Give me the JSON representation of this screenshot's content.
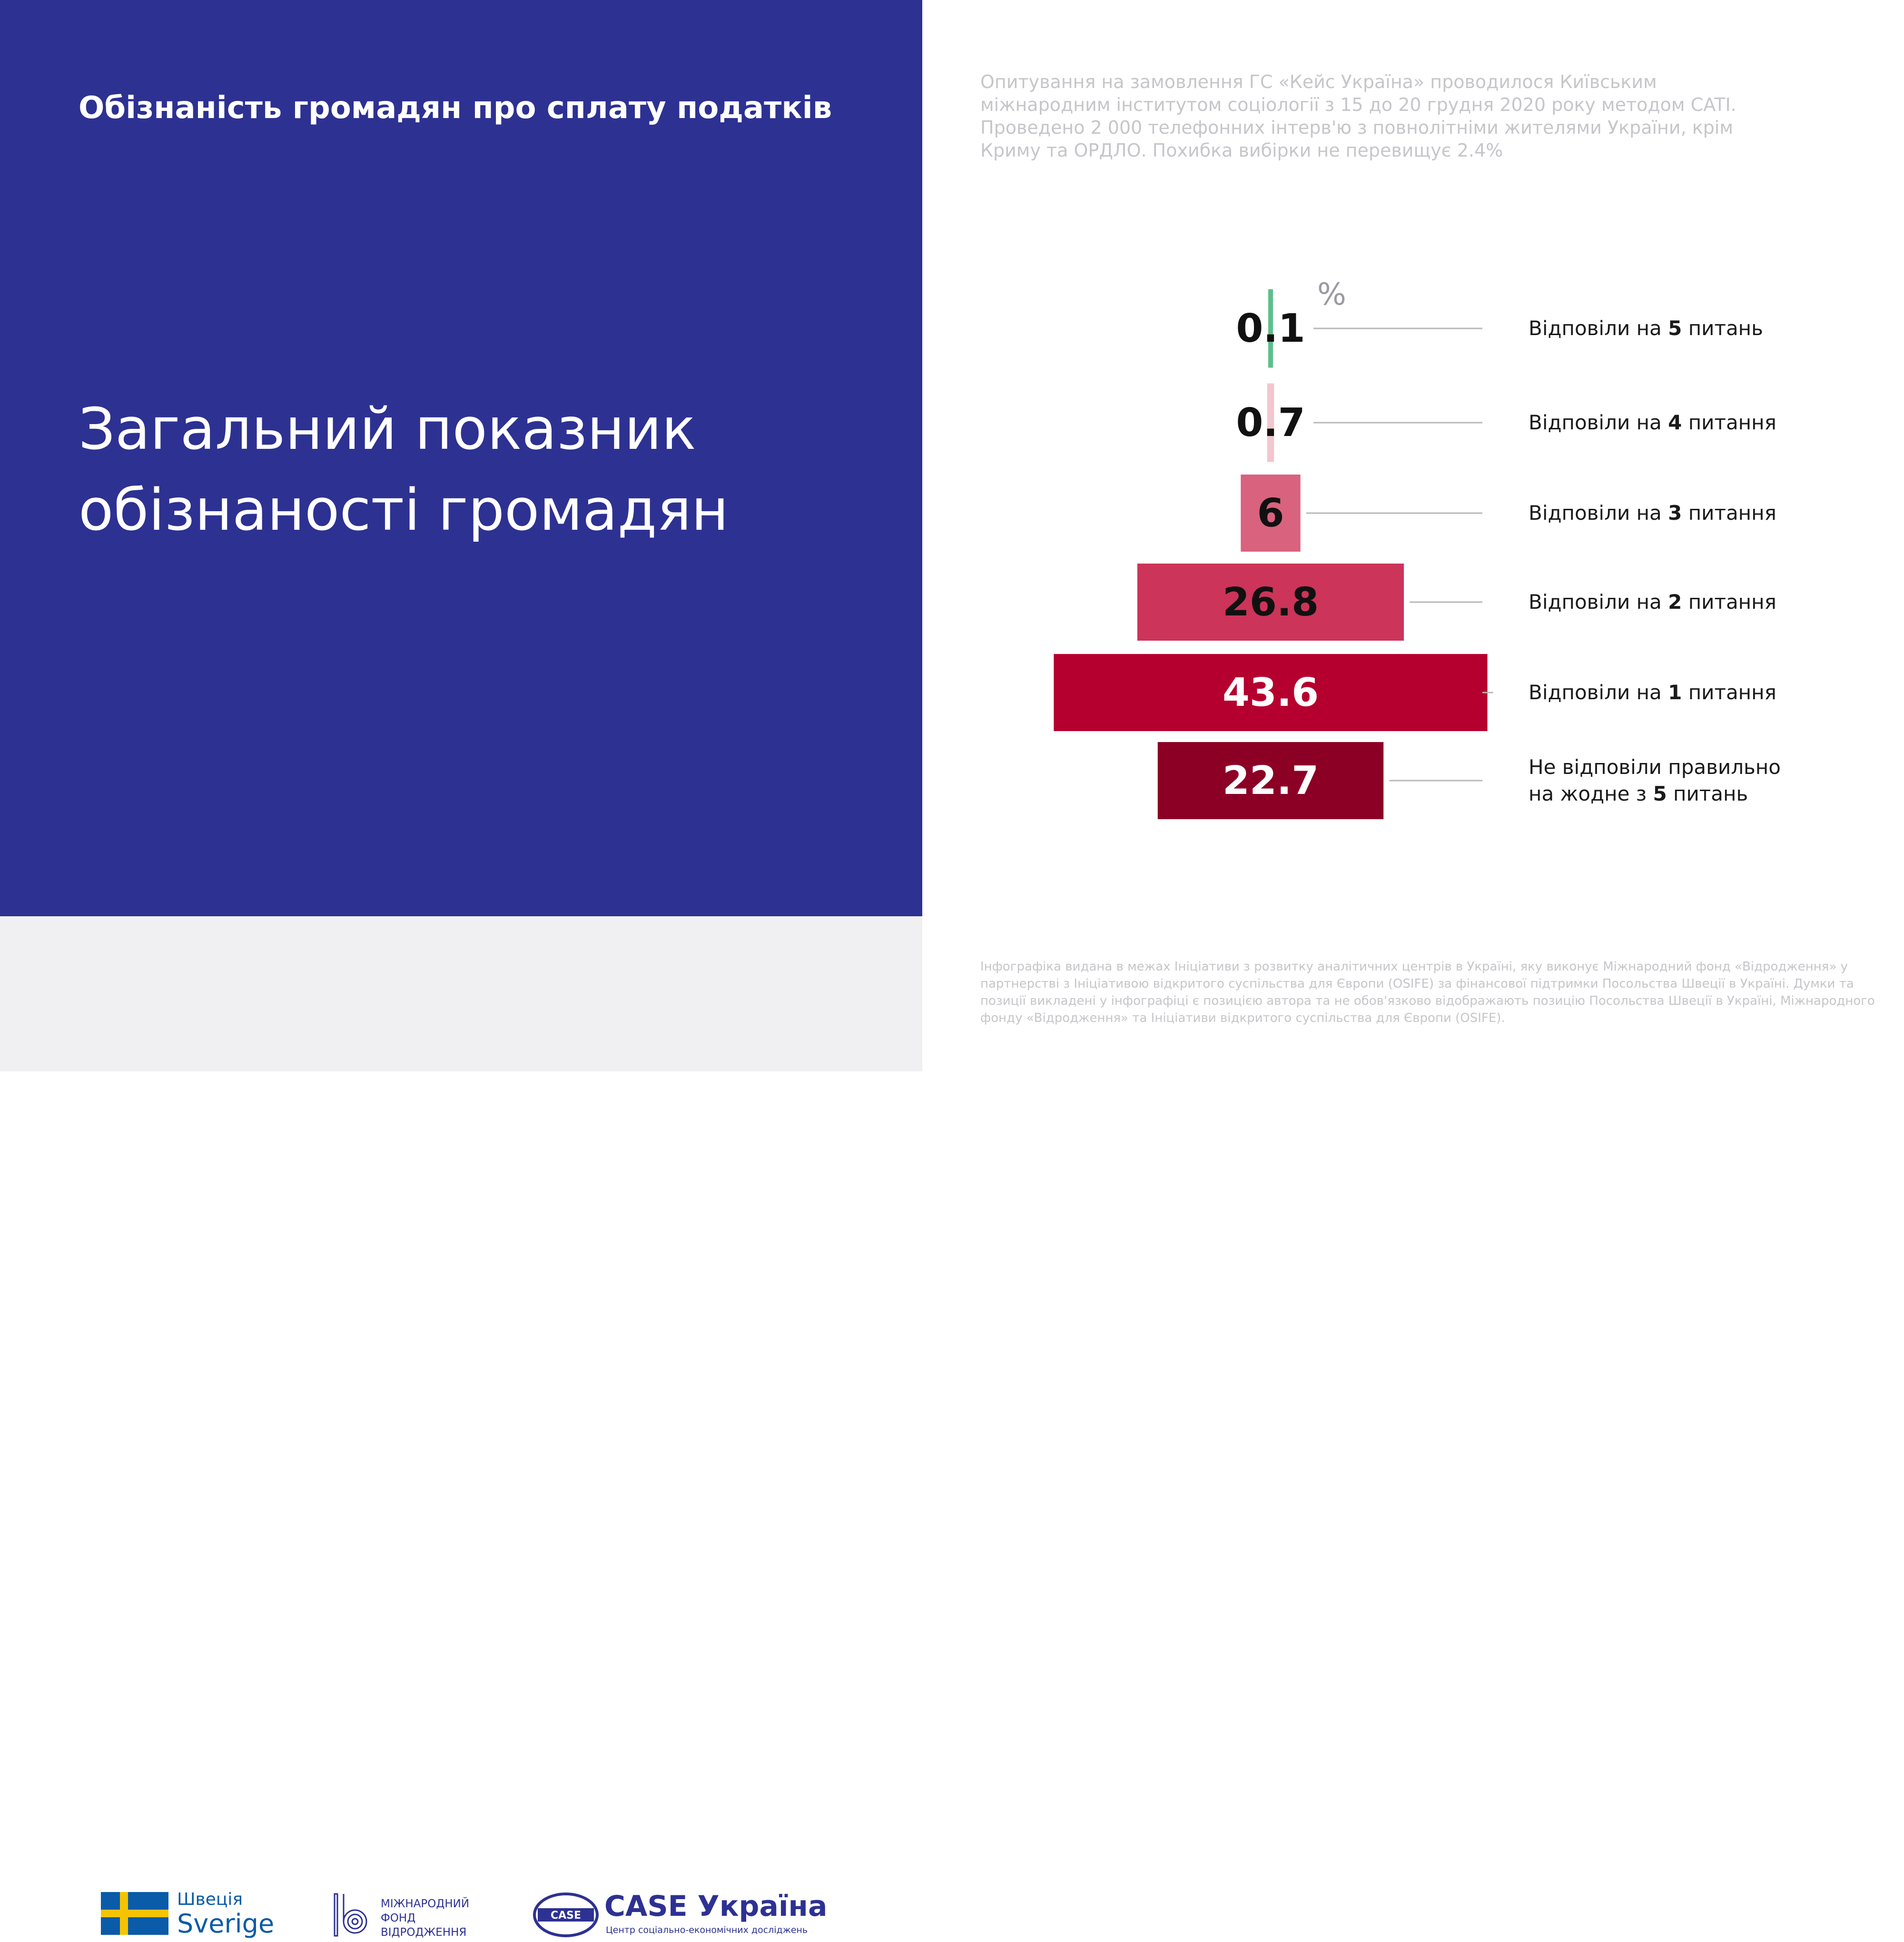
{
  "header": {
    "subtitle": "Обізнаність громадян про сплату податків",
    "title": "Загальний показник обізнаності громадян"
  },
  "survey_note": "Опитування на замовлення ГС «Кейс Україна» проводилося Київським міжнародним інститутом соціології з 15 до 20 грудня 2020 року методом CATI. Проведено 2 000 телефонних інтерв'ю з повнолітніми жителями України, крім Криму та ОРДЛО. Похибка вибірки не перевищує 2.4%",
  "disclaimer": "Інфографіка видана в межах Ініціативи з розвитку аналітичних центрів в Україні, яку виконує Міжнародний фонд «Відродження» у партнерстві з Ініціативою відкритого суспільства для Європи (OSIFE) за фінансової підтримки Посольства Швеції в Україні. Думки та позиції викладені у інфографіці є позицією автора та не обов'язково відображають позицію Посольства Швеції в Україні, Міжнародного фонду «Відродження» та Ініціативи відкритого суспільства для Європи (OSIFE).",
  "logos": {
    "sweden": {
      "line1": "Швеція",
      "line2": "Sverige"
    },
    "irf": {
      "text": "МІЖНАРОДНИЙ\nФОНД\nВІДРОДЖЕННЯ"
    },
    "case": {
      "title": "CASE Україна",
      "subtitle": "Центр соціально-економічних досліджень",
      "mark_text": "CASE"
    }
  },
  "chart_data": {
    "type": "bar",
    "unit": "%",
    "orientation": "horizontal-centered",
    "categories": [
      {
        "pre": "Відповіли на ",
        "bold": "5",
        "post": " питань"
      },
      {
        "pre": "Відповіли на ",
        "bold": "4",
        "post": " питання"
      },
      {
        "pre": "Відповіли на ",
        "bold": "3",
        "post": " питання"
      },
      {
        "pre": "Відповіли на ",
        "bold": "2",
        "post": " питання"
      },
      {
        "pre": "Відповіли на ",
        "bold": "1",
        "post": " питання"
      },
      {
        "pre": "Не відповіли правильно\nна жодне з ",
        "bold": "5",
        "post": " питань"
      }
    ],
    "values": [
      0.1,
      0.7,
      6,
      26.8,
      43.6,
      22.7
    ],
    "value_labels": [
      "0.1",
      "0.7",
      "6",
      "26.8",
      "43.6",
      "22.7"
    ],
    "colors": [
      "#5cbf8c",
      "#f2c6cf",
      "#d9627e",
      "#cc3459",
      "#b5002f",
      "#8c0025"
    ],
    "label_colors": [
      "#111111",
      "#111111",
      "#111111",
      "#111111",
      "#ffffff",
      "#ffffff"
    ]
  }
}
